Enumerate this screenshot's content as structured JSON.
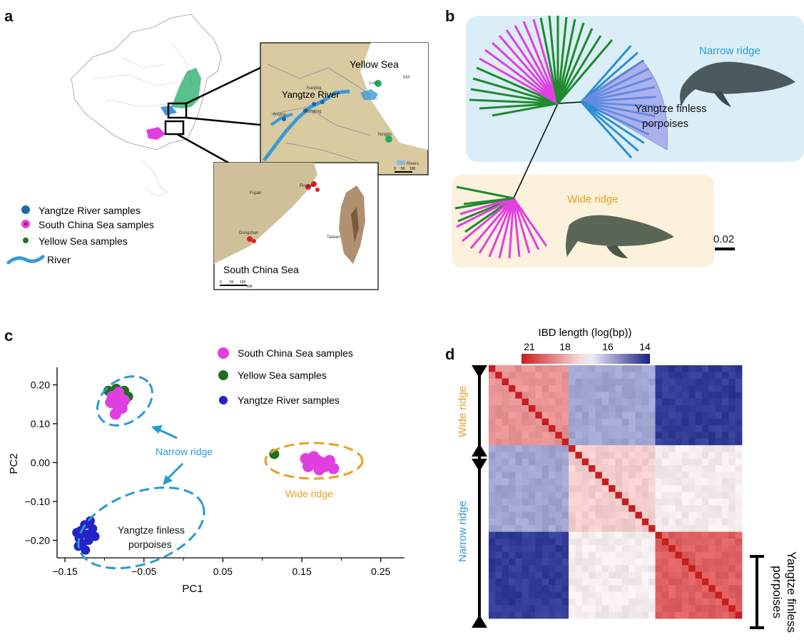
{
  "panels": {
    "a": {
      "letter": "a",
      "inset_north": {
        "sea_label": "Yellow Sea",
        "river_label": "Yangtze River",
        "place_labels": [
          "Nanjing",
          "Anqing",
          "Tongling",
          "Lvsi",
          "Ningbo"
        ],
        "scale_unit": "KM",
        "scale_ticks": [
          "0",
          "50",
          "100"
        ],
        "legend_label": "Rivers"
      },
      "inset_south": {
        "sea_label": "South China Sea",
        "place_labels": [
          "Fujian",
          "Pingtan",
          "Dongshan",
          "Taiwan"
        ],
        "scale_ticks": [
          "0",
          "50",
          "100"
        ],
        "scale_unit": "KM"
      },
      "legend": [
        {
          "label": "Yangtze River samples",
          "color": "#1a6aa8"
        },
        {
          "label": "South China Sea samples",
          "color": "#e040e0"
        },
        {
          "label": "Yellow Sea samples",
          "color": "#1e7a1e"
        },
        {
          "label": "River",
          "color": "#3a9ad8"
        }
      ]
    },
    "b": {
      "letter": "b",
      "narrow_label": "Narrow ridge",
      "wide_label": "Wide ridge",
      "clade_label_line1": "Yangtze finless",
      "clade_label_line2": "porpoises",
      "scale_label": "0.02"
    },
    "c": {
      "letter": "c",
      "chart_data": {
        "type": "scatter",
        "xlabel": "PC1",
        "ylabel": "PC2",
        "xlim": [
          -0.16,
          0.28
        ],
        "ylim": [
          -0.245,
          0.245
        ],
        "xticks": [
          -0.15,
          -0.05,
          0.05,
          0.15,
          0.25
        ],
        "xtick_labels": [
          "−0.15",
          "−0.05",
          "0.05",
          "0.15",
          "0.25"
        ],
        "yticks": [
          0.2,
          0.1,
          0.0,
          -0.1,
          -0.2
        ],
        "ytick_labels": [
          "0.20",
          "0.10",
          "0.00",
          "−0.10",
          "−0.20"
        ],
        "legend_placement": "top-center",
        "series": [
          {
            "name": "South China Sea samples",
            "color": "#e040e0",
            "points": [
              [
                -0.09,
                0.17
              ],
              [
                -0.085,
                0.15
              ],
              [
                -0.08,
                0.165
              ],
              [
                -0.092,
                0.155
              ],
              [
                -0.078,
                0.14
              ],
              [
                -0.086,
                0.125
              ],
              [
                -0.075,
                0.16
              ],
              [
                -0.082,
                0.18
              ],
              [
                0.155,
                0.01
              ],
              [
                0.16,
                -0.005
              ],
              [
                0.17,
                0.005
              ],
              [
                0.175,
                0.0
              ],
              [
                0.165,
                0.015
              ],
              [
                0.18,
                -0.01
              ],
              [
                0.185,
                0.005
              ],
              [
                0.158,
                -0.01
              ],
              [
                0.172,
                -0.018
              ],
              [
                0.19,
                -0.015
              ]
            ]
          },
          {
            "name": "Yellow Sea samples",
            "color": "#1e6e1e",
            "points": [
              [
                -0.095,
                0.185
              ],
              [
                -0.085,
                0.19
              ],
              [
                -0.075,
                0.185
              ],
              [
                -0.07,
                0.17
              ],
              [
                -0.078,
                0.155
              ],
              [
                0.115,
                0.022
              ],
              [
                0.162,
                0.0
              ],
              [
                0.166,
                -0.005
              ]
            ]
          },
          {
            "name": "Yangtze River samples",
            "color": "#2323c8",
            "points": [
              [
                -0.13,
                -0.175
              ],
              [
                -0.125,
                -0.16
              ],
              [
                -0.118,
                -0.15
              ],
              [
                -0.122,
                -0.185
              ],
              [
                -0.132,
                -0.195
              ],
              [
                -0.115,
                -0.17
              ],
              [
                -0.128,
                -0.21
              ],
              [
                -0.12,
                -0.2
              ],
              [
                -0.133,
                -0.215
              ],
              [
                -0.124,
                -0.225
              ],
              [
                -0.112,
                -0.19
              ],
              [
                -0.135,
                -0.18
              ]
            ]
          }
        ],
        "annotations": {
          "narrow": "Narrow ridge",
          "wide": "Wide ridge",
          "yfp_line1": "Yangtze finless",
          "yfp_line2": "porpoises"
        }
      }
    },
    "d": {
      "letter": "d",
      "chart_data": {
        "type": "heatmap",
        "colorbar_title": "IBD length (log(bp))",
        "colorbar_ticks": [
          "21",
          "18",
          "16",
          "14"
        ],
        "groups": {
          "wide_n": 12,
          "narrow_a_n": 13,
          "yfp_n": 13
        },
        "left_label_wide": "Wide ridge",
        "left_label_narrow": "Narrow ridge",
        "right_label_line1": "Yangtze finless",
        "right_label_line2": "porpoises"
      }
    }
  },
  "colors": {
    "narrow_blue": "#2a9ad6",
    "wide_orange": "#e8a020",
    "panel_b_narrow_bg": "#dbeef7",
    "panel_b_wide_bg": "#fbf1dc",
    "magenta": "#e040e0",
    "green": "#1e8a2e",
    "clade_blue": "#2a8fd6"
  }
}
